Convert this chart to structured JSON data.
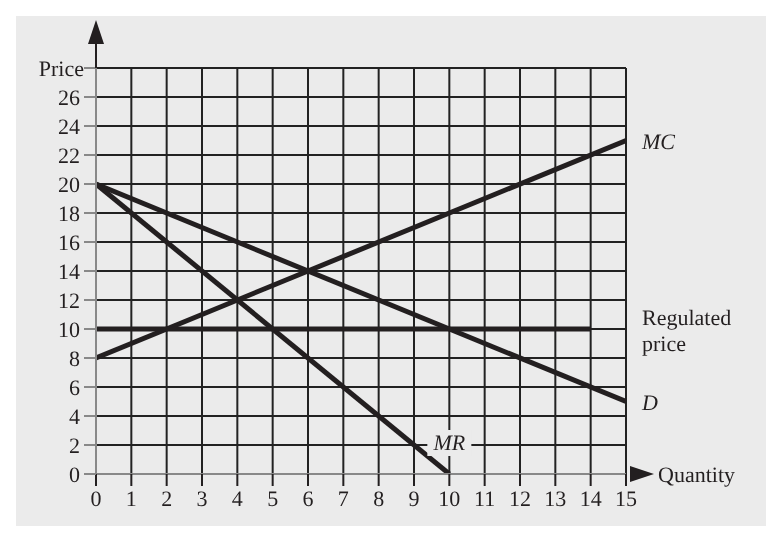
{
  "chart_data": {
    "type": "line",
    "xlabel": "Quantity",
    "ylabel": "Price",
    "xlim": [
      0,
      15
    ],
    "ylim": [
      0,
      28
    ],
    "xticks": [
      0,
      1,
      2,
      3,
      4,
      5,
      6,
      7,
      8,
      9,
      10,
      11,
      12,
      13,
      14,
      15
    ],
    "yticks": [
      0,
      2,
      4,
      6,
      8,
      10,
      12,
      14,
      16,
      18,
      20,
      22,
      24,
      26,
      {
        "value": 28,
        "label": null
      }
    ],
    "grid": true,
    "legend": false,
    "marker": "none",
    "line_style": "solid",
    "series": [
      {
        "name": "MC",
        "color": "#231f20",
        "x": [
          0,
          15
        ],
        "values": [
          8,
          23
        ]
      },
      {
        "name": "D",
        "color": "#231f20",
        "x": [
          0,
          15
        ],
        "values": [
          20,
          5
        ]
      },
      {
        "name": "MR",
        "color": "#231f20",
        "x": [
          0,
          10
        ],
        "values": [
          20,
          0
        ]
      },
      {
        "name": "Regulated price",
        "color": "#231f20",
        "x": [
          0,
          14
        ],
        "values": [
          10,
          10
        ]
      }
    ]
  }
}
